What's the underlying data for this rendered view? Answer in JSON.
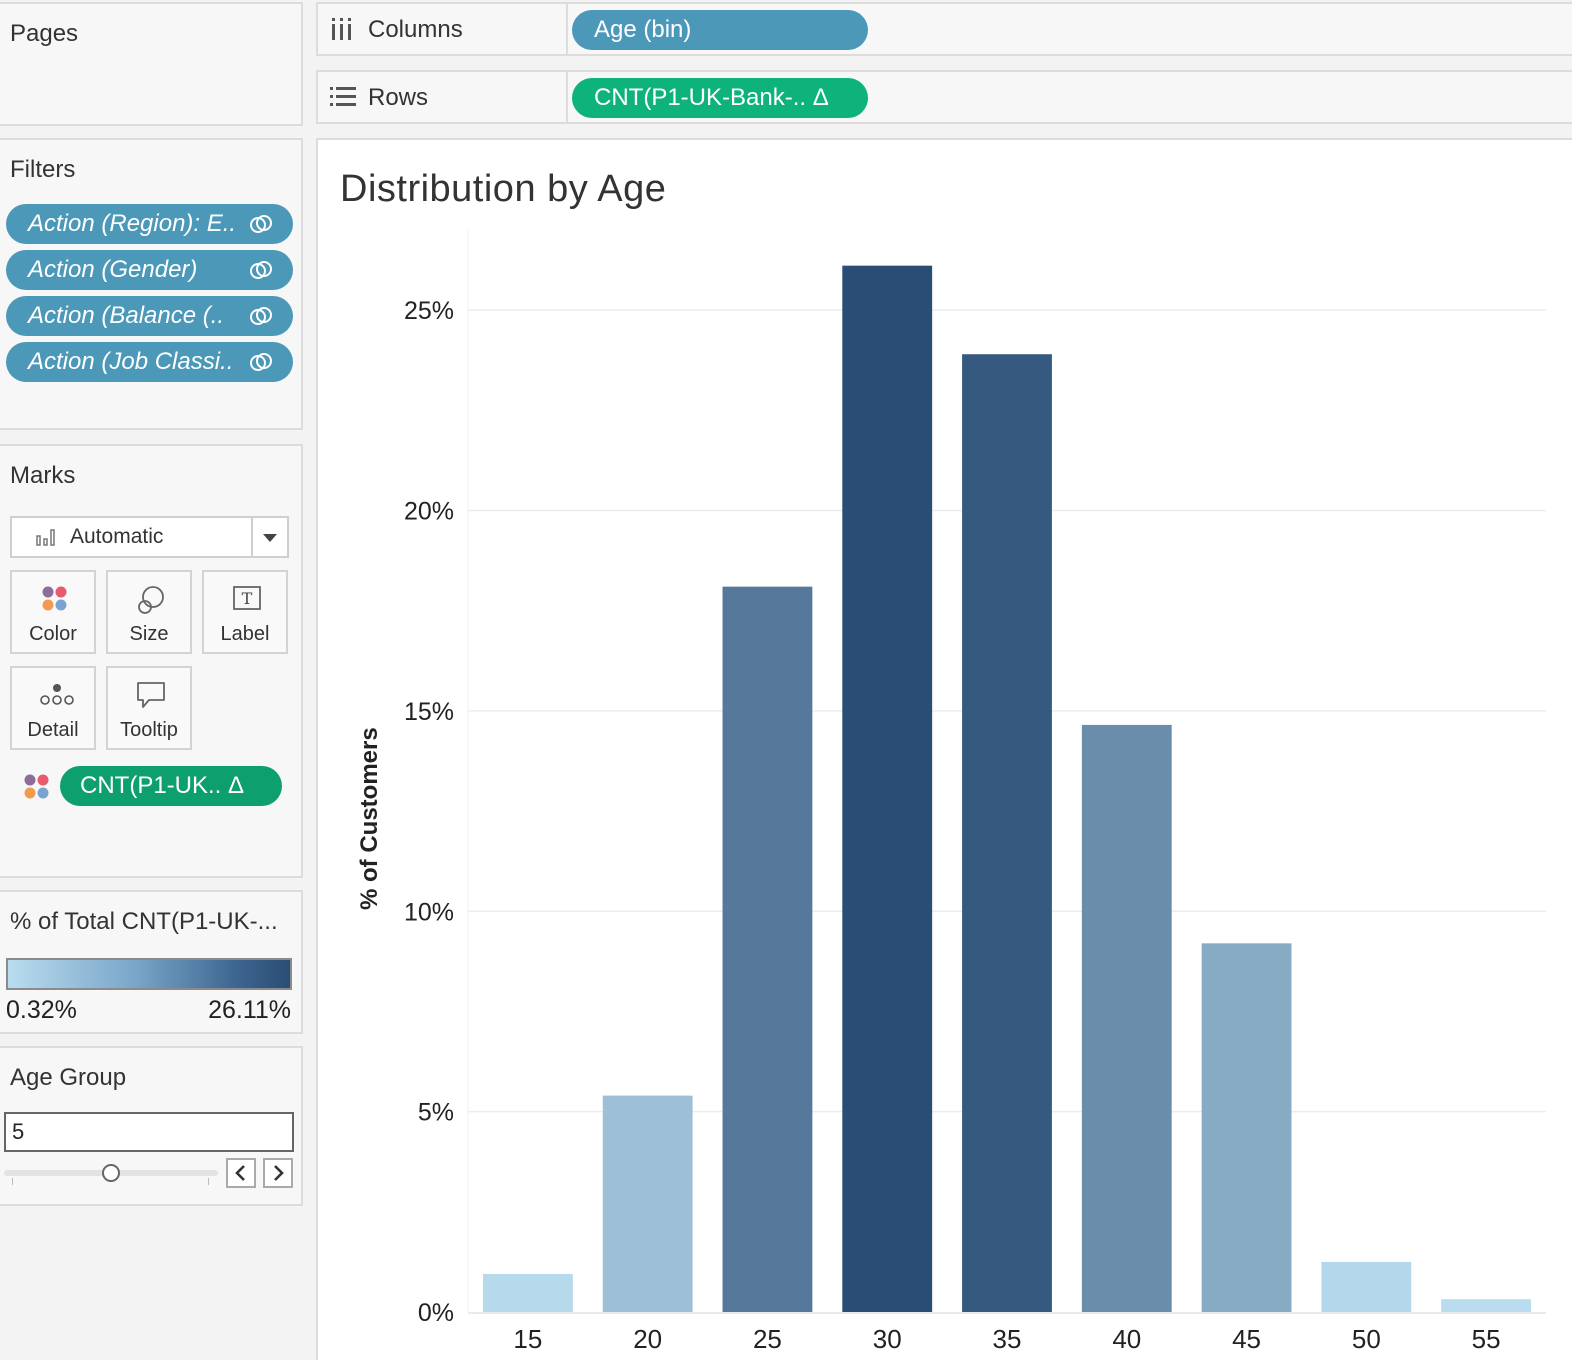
{
  "pages": {
    "title": "Pages"
  },
  "filters": {
    "title": "Filters",
    "items": [
      {
        "label": "Action (Region): E..",
        "icon": "linked-icon"
      },
      {
        "label": "Action (Gender)",
        "icon": "linked-icon"
      },
      {
        "label": "Action (Balance (..",
        "icon": "linked-icon"
      },
      {
        "label": "Action (Job Classi..",
        "icon": "linked-icon"
      }
    ]
  },
  "marks": {
    "title": "Marks",
    "type": "Automatic",
    "buttons": {
      "color": "Color",
      "size": "Size",
      "label": "Label",
      "detail": "Detail",
      "tooltip": "Tooltip"
    },
    "color_pill": "CNT(P1-UK.. Δ"
  },
  "color_legend": {
    "title": "% of Total CNT(P1-UK-...",
    "min": "0.32%",
    "max": "26.11%",
    "colors": [
      "#b9dcef",
      "#2a4d75"
    ]
  },
  "age_group": {
    "title": "Age Group",
    "value": "5",
    "slider_fraction": 0.5
  },
  "shelves": {
    "columns": {
      "label": "Columns",
      "pill": "Age (bin)",
      "color": "#4b98b8"
    },
    "rows": {
      "label": "Rows",
      "pill": "CNT(P1-UK-Bank-.. Δ",
      "color": "#0db37a"
    }
  },
  "chart_data": {
    "type": "bar",
    "title": "Distribution by Age",
    "xlabel": "",
    "ylabel": "% of Customers",
    "categories": [
      "15",
      "20",
      "25",
      "30",
      "35",
      "40",
      "45",
      "50",
      "55"
    ],
    "values": [
      0.95,
      5.4,
      18.1,
      26.11,
      23.9,
      14.65,
      9.2,
      1.25,
      0.32
    ],
    "ylim": [
      0,
      27
    ],
    "yticks": [
      "0%",
      "5%",
      "10%",
      "15%",
      "20%",
      "25%"
    ],
    "ytick_values": [
      0,
      5,
      10,
      15,
      20,
      25
    ],
    "color_scale": [
      "#b9dcef",
      "#2a4d75"
    ],
    "grid": true
  }
}
